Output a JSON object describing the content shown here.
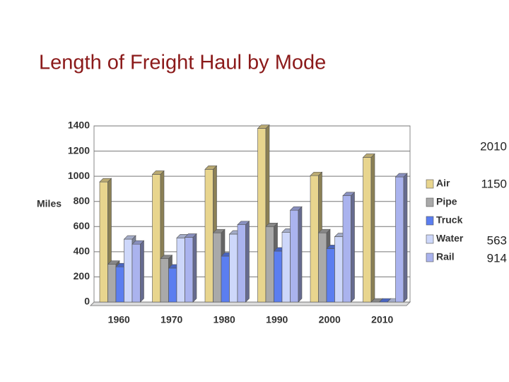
{
  "chart_data": {
    "type": "bar3d",
    "title": "Length of Freight Haul by Mode",
    "y_label": "Miles",
    "categories": [
      "1960",
      "1970",
      "1980",
      "1990",
      "2000",
      "2010"
    ],
    "series": [
      {
        "name": "Air",
        "color": "#e8d58e",
        "values": [
          955,
          1015,
          1055,
          1380,
          1005,
          1150
        ]
      },
      {
        "name": "Pipe",
        "color": "#a9a9a9",
        "values": [
          300,
          345,
          550,
          600,
          550,
          0
        ]
      },
      {
        "name": "Truck",
        "color": "#5b7ef0",
        "values": [
          280,
          270,
          365,
          405,
          425,
          0
        ]
      },
      {
        "name": "Water",
        "color": "#cdd7fa",
        "values": [
          500,
          510,
          540,
          555,
          520,
          0
        ]
      },
      {
        "name": "Rail",
        "color": "#aab3ee",
        "values": [
          460,
          515,
          615,
          730,
          845,
          995
        ]
      }
    ],
    "ylim": [
      0,
      1400
    ],
    "yticks": [
      0,
      200,
      400,
      600,
      800,
      1000,
      1200,
      1400
    ],
    "grid": true,
    "legend": "right",
    "annotations": [
      "2010",
      "1150",
      "563",
      "914"
    ]
  }
}
